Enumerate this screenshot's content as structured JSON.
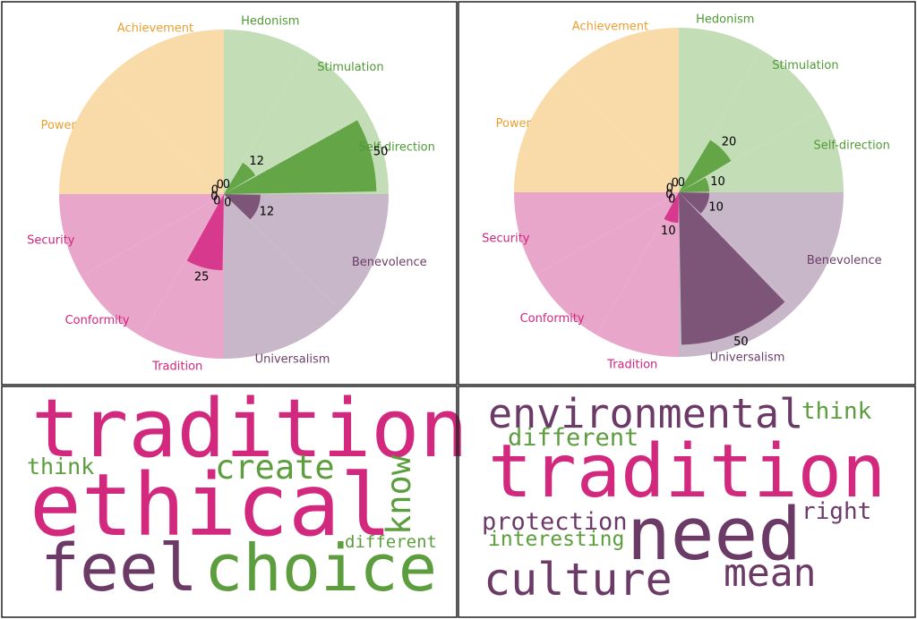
{
  "chart_data": [
    {
      "type": "rose",
      "categories": [
        "Hedonism",
        "Stimulation",
        "Self-direction",
        "Benevolence",
        "Universalism",
        "Tradition",
        "Conformity",
        "Security",
        "Power",
        "Achievement"
      ],
      "values": [
        0,
        12,
        50,
        12,
        0,
        25,
        0,
        0,
        0,
        0
      ],
      "rlim": [
        0,
        54
      ],
      "colors": [
        "#5a9e3c",
        "#5a9e3c",
        "#5a9e3c",
        "#744a70",
        "#744a70",
        "#d52f85",
        "#d52f85",
        "#d52f85",
        "#f0a83a",
        "#f0a83a"
      ],
      "background_colors": [
        "#c3ddb6",
        "#c3ddb6",
        "#c3ddb6",
        "#c8b6c9",
        "#c8b6c9",
        "#e9a6cb",
        "#e9a6cb",
        "#e9a6cb",
        "#f9dba9",
        "#f9dba9"
      ],
      "label_colors": [
        "#4f9a35",
        "#4f9a35",
        "#4f9a35",
        "#6b3f68",
        "#6b3f68",
        "#d2257e",
        "#d2257e",
        "#d2257e",
        "#eaa030",
        "#eaa030"
      ]
    },
    {
      "type": "rose",
      "categories": [
        "Hedonism",
        "Stimulation",
        "Self-direction",
        "Benevolence",
        "Universalism",
        "Tradition",
        "Conformity",
        "Security",
        "Power",
        "Achievement"
      ],
      "values": [
        0,
        20,
        10,
        10,
        50,
        10,
        0,
        0,
        0,
        0
      ],
      "rlim": [
        0,
        54
      ],
      "colors": [
        "#5a9e3c",
        "#5a9e3c",
        "#5a9e3c",
        "#744a70",
        "#744a70",
        "#d52f85",
        "#d52f85",
        "#d52f85",
        "#f0a83a",
        "#f0a83a"
      ],
      "background_colors": [
        "#c3ddb6",
        "#c3ddb6",
        "#c3ddb6",
        "#c8b6c9",
        "#c8b6c9",
        "#e9a6cb",
        "#e9a6cb",
        "#e9a6cb",
        "#f9dba9",
        "#f9dba9"
      ],
      "label_colors": [
        "#4f9a35",
        "#4f9a35",
        "#4f9a35",
        "#6b3f68",
        "#6b3f68",
        "#d2257e",
        "#d2257e",
        "#d2257e",
        "#eaa030",
        "#eaa030"
      ]
    },
    {
      "type": "wordcloud",
      "words": [
        {
          "text": "tradition",
          "color": "#d2287e"
        },
        {
          "text": "ethical",
          "color": "#d2287e"
        },
        {
          "text": "feel",
          "color": "#6b3a67"
        },
        {
          "text": "choice",
          "color": "#5c9d3e"
        },
        {
          "text": "create",
          "color": "#5c9d3e"
        },
        {
          "text": "know",
          "color": "#5c9d3e"
        },
        {
          "text": "think",
          "color": "#5c9d3e"
        },
        {
          "text": "different",
          "color": "#5c9d3e"
        }
      ]
    },
    {
      "type": "wordcloud",
      "words": [
        {
          "text": "environmental",
          "color": "#6b3a67"
        },
        {
          "text": "think",
          "color": "#5c9d3e"
        },
        {
          "text": "different",
          "color": "#5c9d3e"
        },
        {
          "text": "tradition",
          "color": "#d2287e"
        },
        {
          "text": "protection",
          "color": "#6b3a67"
        },
        {
          "text": "right",
          "color": "#6b3a67"
        },
        {
          "text": "interesting",
          "color": "#5c9d3e"
        },
        {
          "text": "need",
          "color": "#6b3a67"
        },
        {
          "text": "culture",
          "color": "#6b3a67"
        },
        {
          "text": "mean",
          "color": "#6b3a67"
        }
      ]
    }
  ]
}
